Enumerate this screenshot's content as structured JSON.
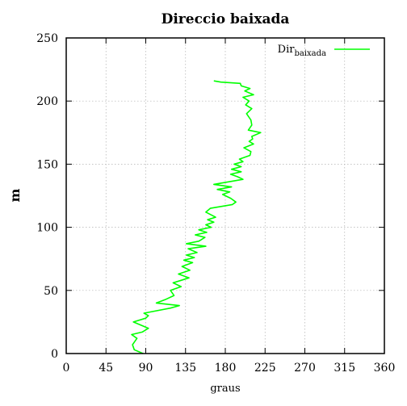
{
  "chart_data": {
    "type": "line",
    "title": "Direccio baixada",
    "xlabel": "graus",
    "ylabel": "m",
    "xlim": [
      0,
      360
    ],
    "ylim": [
      0,
      250
    ],
    "xticks": [
      "0",
      "45",
      "90",
      "135",
      "180",
      "225",
      "270",
      "315",
      "360"
    ],
    "yticks": [
      "0",
      "50",
      "100",
      "150",
      "200",
      "250"
    ],
    "grid": true,
    "legend_position": "top-right",
    "series": [
      {
        "name": "Dir",
        "name_subscript": "baixada",
        "color": "#00ff00",
        "points": [
          [
            87,
            0
          ],
          [
            77,
            3
          ],
          [
            75,
            7
          ],
          [
            80,
            12
          ],
          [
            74,
            15
          ],
          [
            86,
            17
          ],
          [
            93,
            20
          ],
          [
            76,
            25
          ],
          [
            90,
            28
          ],
          [
            93,
            30
          ],
          [
            88,
            32
          ],
          [
            118,
            36
          ],
          [
            128,
            38
          ],
          [
            102,
            40
          ],
          [
            113,
            43
          ],
          [
            122,
            46
          ],
          [
            118,
            50
          ],
          [
            130,
            53
          ],
          [
            121,
            56
          ],
          [
            130,
            58
          ],
          [
            139,
            60
          ],
          [
            127,
            63
          ],
          [
            140,
            66
          ],
          [
            131,
            69
          ],
          [
            143,
            72
          ],
          [
            133,
            74
          ],
          [
            145,
            76
          ],
          [
            136,
            78
          ],
          [
            148,
            80
          ],
          [
            138,
            83
          ],
          [
            158,
            85
          ],
          [
            136,
            87
          ],
          [
            150,
            89
          ],
          [
            157,
            92
          ],
          [
            146,
            94
          ],
          [
            159,
            96
          ],
          [
            150,
            98
          ],
          [
            164,
            100
          ],
          [
            158,
            102
          ],
          [
            167,
            104
          ],
          [
            160,
            106
          ],
          [
            169,
            108
          ],
          [
            158,
            112
          ],
          [
            163,
            115
          ],
          [
            188,
            118
          ],
          [
            192,
            120
          ],
          [
            186,
            123
          ],
          [
            177,
            126
          ],
          [
            185,
            128
          ],
          [
            171,
            130
          ],
          [
            187,
            132
          ],
          [
            167,
            134
          ],
          [
            200,
            138
          ],
          [
            194,
            140
          ],
          [
            186,
            142
          ],
          [
            198,
            144
          ],
          [
            187,
            146
          ],
          [
            198,
            148
          ],
          [
            190,
            150
          ],
          [
            200,
            152
          ],
          [
            196,
            154
          ],
          [
            208,
            157
          ],
          [
            209,
            160
          ],
          [
            201,
            163
          ],
          [
            212,
            166
          ],
          [
            207,
            168
          ],
          [
            211,
            170
          ],
          [
            210,
            172
          ],
          [
            220,
            175
          ],
          [
            206,
            177
          ],
          [
            210,
            181
          ],
          [
            209,
            185
          ],
          [
            204,
            190
          ],
          [
            210,
            194
          ],
          [
            203,
            197
          ],
          [
            207,
            200
          ],
          [
            200,
            203
          ],
          [
            212,
            205
          ],
          [
            202,
            208
          ],
          [
            208,
            210
          ],
          [
            198,
            212
          ],
          [
            197,
            214
          ],
          [
            175,
            215
          ],
          [
            167,
            216
          ]
        ]
      }
    ]
  }
}
